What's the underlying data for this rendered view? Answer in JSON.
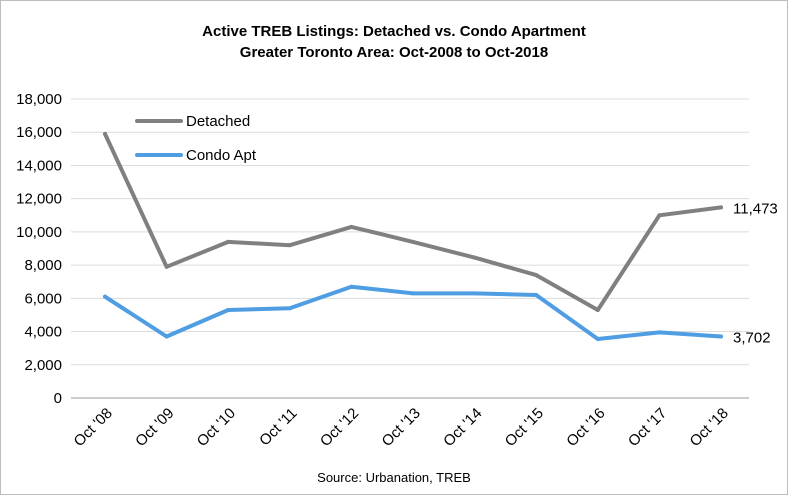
{
  "chart_data": {
    "type": "line",
    "title_line1": "Active TREB Listings: Detached vs. Condo Apartment",
    "title_line2": "Greater Toronto Area: Oct-2008 to Oct-2018",
    "source": "Source: Urbanation, TREB",
    "categories": [
      "Oct '08",
      "Oct '09",
      "Oct '10",
      "Oct '11",
      "Oct '12",
      "Oct '13",
      "Oct '14",
      "Oct '15",
      "Oct '16",
      "Oct '17",
      "Oct '18"
    ],
    "ylim": [
      0,
      18000
    ],
    "yticks": [
      "0",
      "2,000",
      "4,000",
      "6,000",
      "8,000",
      "10,000",
      "12,000",
      "14,000",
      "16,000",
      "18,000"
    ],
    "series": [
      {
        "name": "Detached",
        "color": "#808080",
        "values": [
          15900,
          7900,
          9400,
          9200,
          10300,
          9400,
          8450,
          7400,
          5300,
          11000,
          11473
        ],
        "end_label": "11,473"
      },
      {
        "name": "Condo Apt",
        "color": "#4f9de3",
        "values": [
          6100,
          3700,
          5300,
          5400,
          6700,
          6300,
          6300,
          6200,
          3550,
          3950,
          3702
        ],
        "end_label": "3,702"
      }
    ],
    "grid": true,
    "legend": "top-left"
  }
}
